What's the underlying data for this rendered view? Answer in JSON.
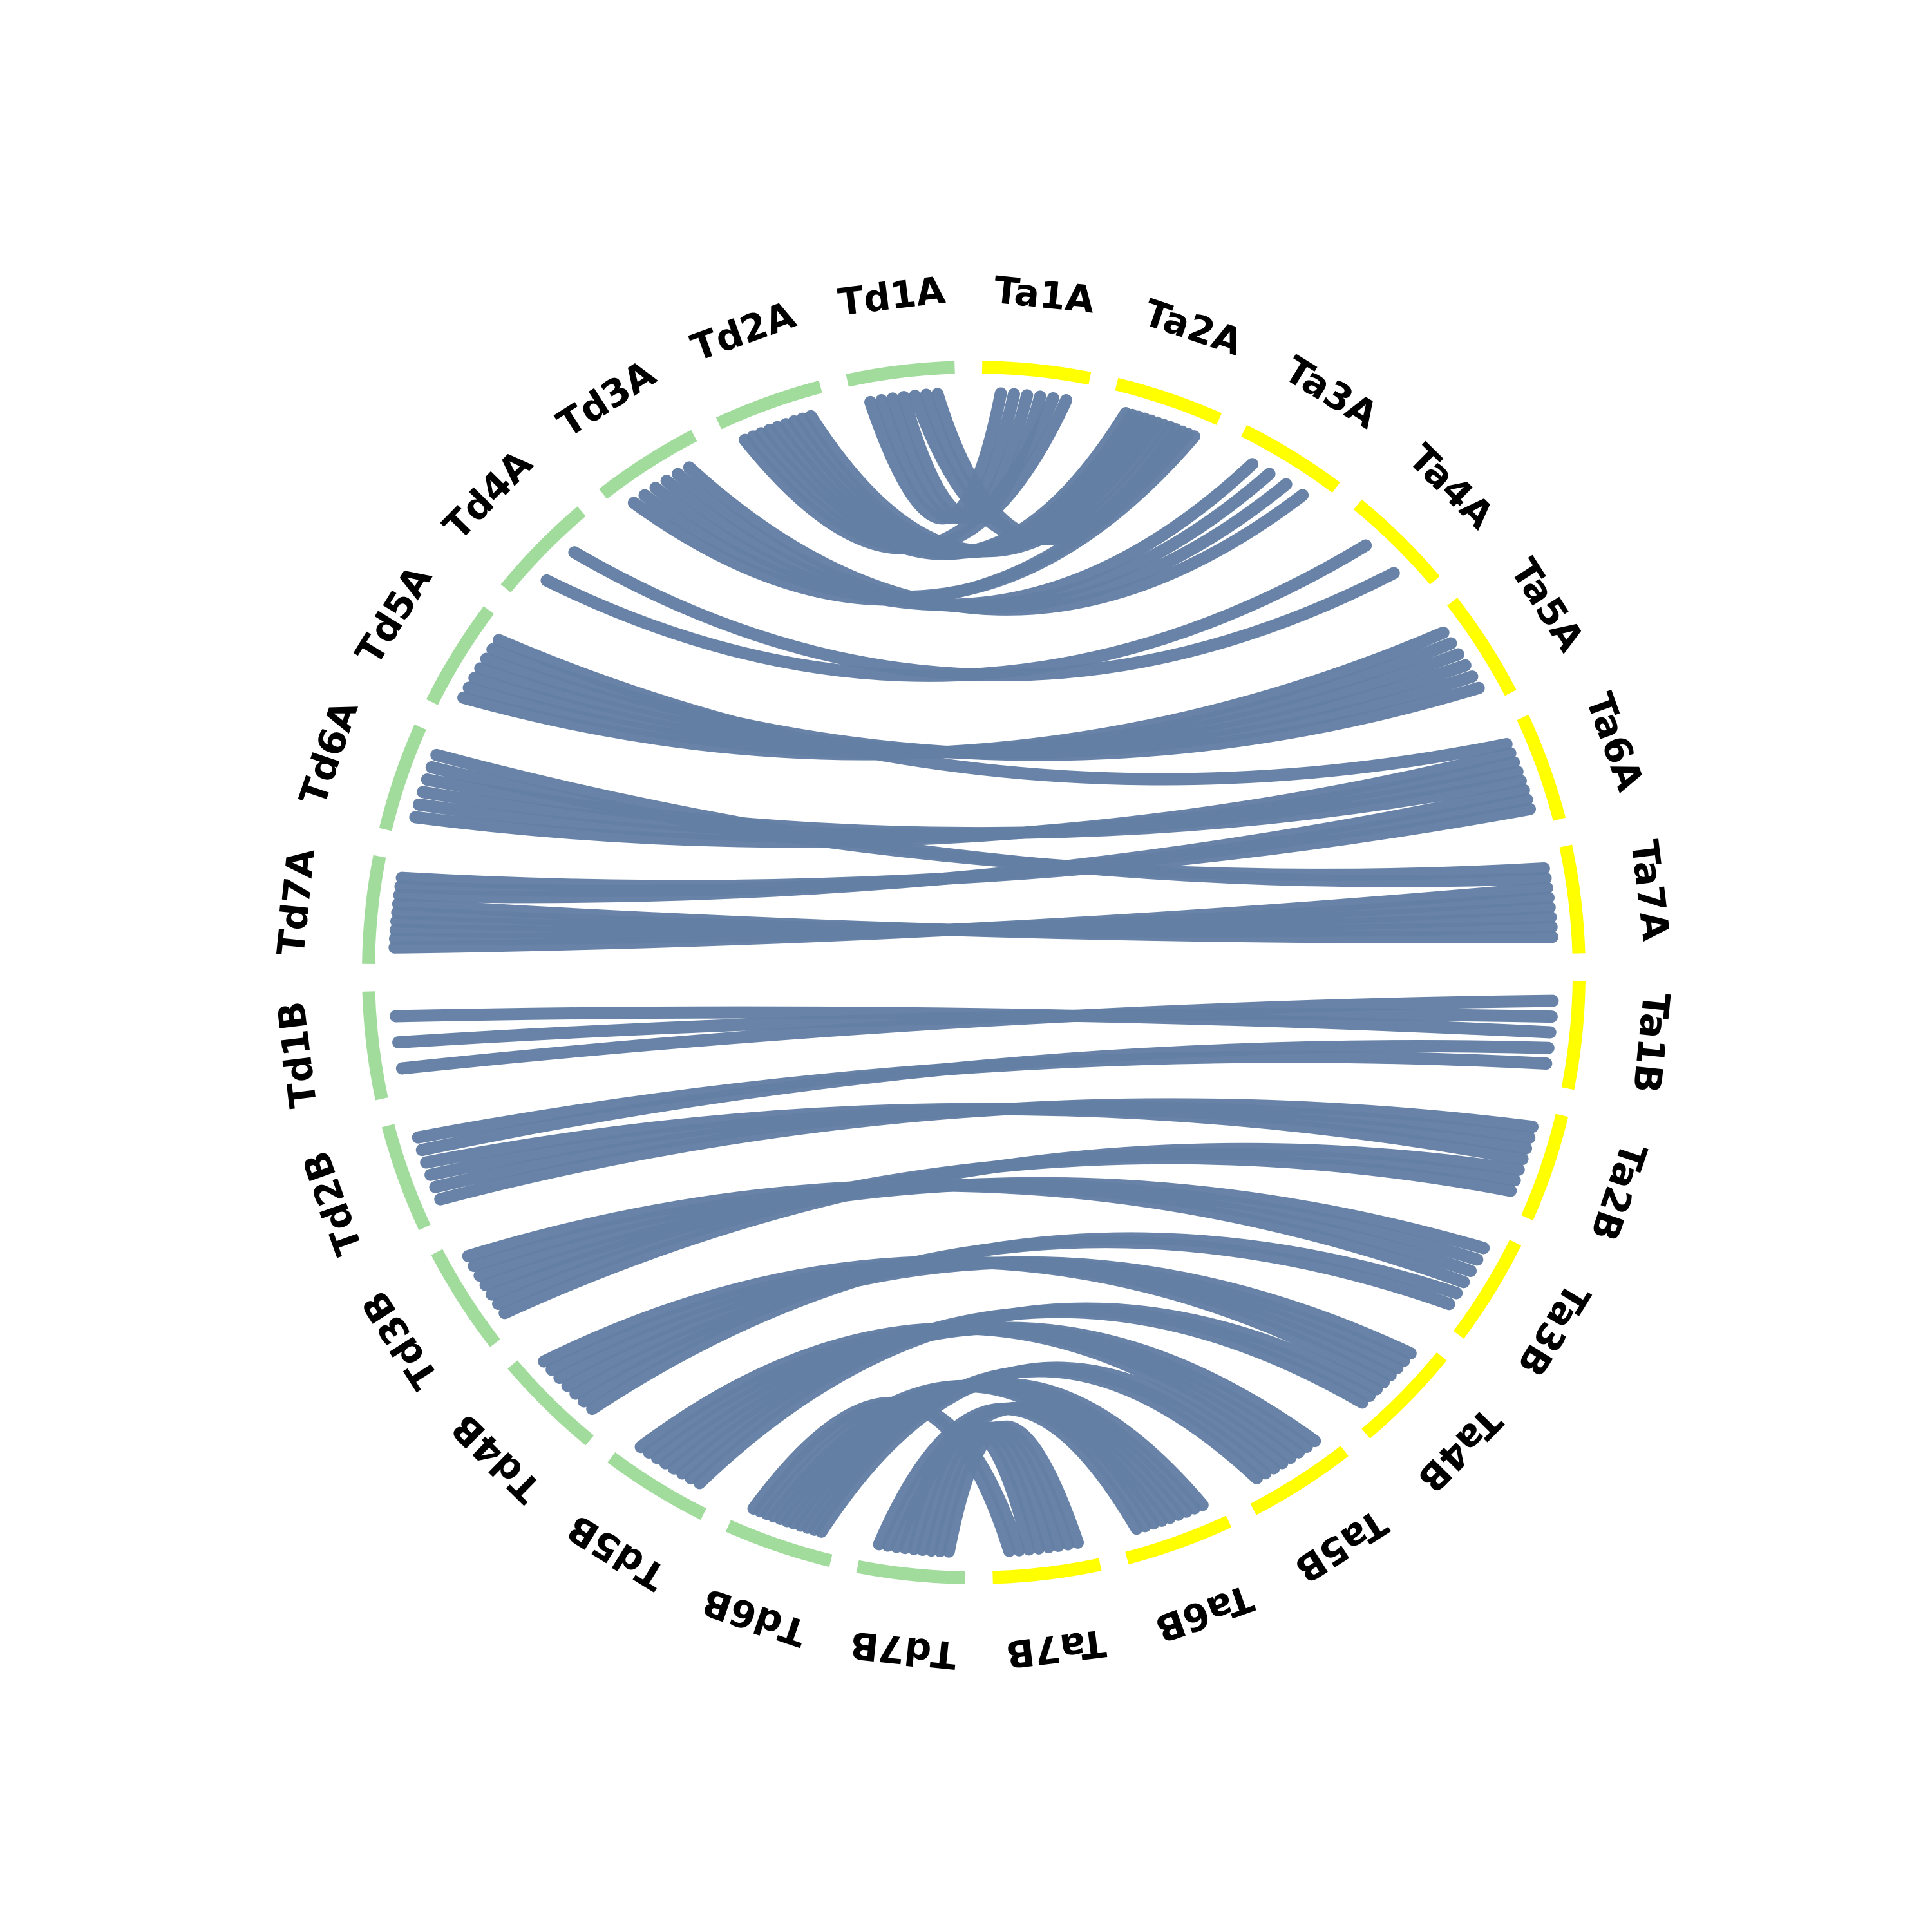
{
  "chart_data": {
    "type": "chord",
    "colors": {
      "Td": "#a2dc9d",
      "Ta": "#ffff00",
      "link": "#637fa4"
    },
    "segments": [
      {
        "name": "Ta1A",
        "group": "Ta"
      },
      {
        "name": "Ta2A",
        "group": "Ta"
      },
      {
        "name": "Ta3A",
        "group": "Ta"
      },
      {
        "name": "Ta4A",
        "group": "Ta"
      },
      {
        "name": "Ta5A",
        "group": "Ta"
      },
      {
        "name": "Ta6A",
        "group": "Ta"
      },
      {
        "name": "Ta7A",
        "group": "Ta"
      },
      {
        "name": "Ta1B",
        "group": "Ta"
      },
      {
        "name": "Ta2B",
        "group": "Ta"
      },
      {
        "name": "Ta3B",
        "group": "Ta"
      },
      {
        "name": "Ta4B",
        "group": "Ta"
      },
      {
        "name": "Ta5B",
        "group": "Ta"
      },
      {
        "name": "Ta6B",
        "group": "Ta"
      },
      {
        "name": "Ta7B",
        "group": "Ta"
      },
      {
        "name": "Td7B",
        "group": "Td"
      },
      {
        "name": "Td6B",
        "group": "Td"
      },
      {
        "name": "Td5B",
        "group": "Td"
      },
      {
        "name": "Td4B",
        "group": "Td"
      },
      {
        "name": "Td3B",
        "group": "Td"
      },
      {
        "name": "Td2B",
        "group": "Td"
      },
      {
        "name": "Td1B",
        "group": "Td"
      },
      {
        "name": "Td7A",
        "group": "Td"
      },
      {
        "name": "Td6A",
        "group": "Td"
      },
      {
        "name": "Td5A",
        "group": "Td"
      },
      {
        "name": "Td4A",
        "group": "Td"
      },
      {
        "name": "Td3A",
        "group": "Td"
      },
      {
        "name": "Td2A",
        "group": "Td"
      },
      {
        "name": "Td1A",
        "group": "Td"
      }
    ],
    "links": [
      {
        "source": "Td1A",
        "target": "Ta1A",
        "count": 4
      },
      {
        "source": "Td2A",
        "target": "Ta1A",
        "count": 2
      },
      {
        "source": "Td2A",
        "target": "Ta2A",
        "count": 7
      },
      {
        "source": "Td1A",
        "target": "Ta2A",
        "count": 3
      },
      {
        "source": "Td3A",
        "target": "Ta2A",
        "count": 2
      },
      {
        "source": "Td3A",
        "target": "Ta3A",
        "count": 4
      },
      {
        "source": "Td4A",
        "target": "Ta4A",
        "count": 2
      },
      {
        "source": "Td5A",
        "target": "Ta5A",
        "count": 6
      },
      {
        "source": "Td5A",
        "target": "Ta6A",
        "count": 1
      },
      {
        "source": "Td6A",
        "target": "Ta6A",
        "count": 4
      },
      {
        "source": "Td6A",
        "target": "Ta7A",
        "count": 2
      },
      {
        "source": "Td7A",
        "target": "Ta7A",
        "count": 6
      },
      {
        "source": "Td7A",
        "target": "Ta6A",
        "count": 3
      },
      {
        "source": "Td1B",
        "target": "Ta1B",
        "count": 3
      },
      {
        "source": "Td2B",
        "target": "Ta2B",
        "count": 4
      },
      {
        "source": "Td2B",
        "target": "Ta1B",
        "count": 2
      },
      {
        "source": "Td3B",
        "target": "Ta2B",
        "count": 3
      },
      {
        "source": "Td3B",
        "target": "Ta3B",
        "count": 4
      },
      {
        "source": "Td4B",
        "target": "Ta3B",
        "count": 2
      },
      {
        "source": "Td4B",
        "target": "Ta4B",
        "count": 5
      },
      {
        "source": "Td5B",
        "target": "Ta4B",
        "count": 3
      },
      {
        "source": "Td5B",
        "target": "Ta5B",
        "count": 5
      },
      {
        "source": "Td6B",
        "target": "Ta5B",
        "count": 3
      },
      {
        "source": "Td6B",
        "target": "Ta6B",
        "count": 6
      },
      {
        "source": "Td7B",
        "target": "Ta7B",
        "count": 6
      },
      {
        "source": "Td7B",
        "target": "Ta6B",
        "count": 3
      },
      {
        "source": "Td6B",
        "target": "Ta7B",
        "count": 2
      }
    ]
  }
}
